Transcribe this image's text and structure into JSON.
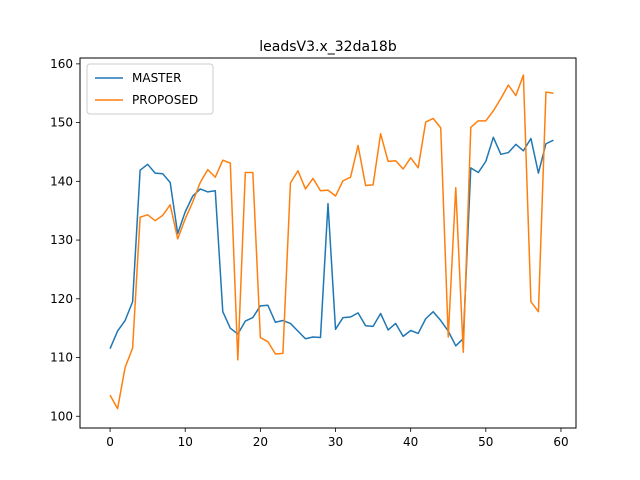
{
  "chart_data": {
    "type": "line",
    "title": "leadsV3.x_32da18b",
    "xlabel": "",
    "ylabel": "",
    "xlim": [
      -4,
      62
    ],
    "ylim": [
      98,
      161
    ],
    "xticks": [
      0,
      10,
      20,
      30,
      40,
      50,
      60
    ],
    "yticks": [
      100,
      110,
      120,
      130,
      140,
      150,
      160
    ],
    "grid": false,
    "legend": {
      "position": "top-left"
    },
    "x": [
      0,
      1,
      2,
      3,
      4,
      5,
      6,
      7,
      8,
      9,
      10,
      11,
      12,
      13,
      14,
      15,
      16,
      17,
      18,
      19,
      20,
      21,
      22,
      23,
      24,
      25,
      26,
      27,
      28,
      29,
      30,
      31,
      32,
      33,
      34,
      35,
      36,
      37,
      38,
      39,
      40,
      41,
      42,
      43,
      44,
      45,
      46,
      47,
      48,
      49,
      50,
      51,
      52,
      53,
      54,
      55,
      56,
      57,
      58,
      59
    ],
    "series": [
      {
        "name": "MASTER",
        "color": "#1f77b4",
        "values": [
          111.5,
          114.5,
          116.3,
          119.5,
          141.9,
          142.9,
          141.4,
          141.3,
          139.8,
          131.1,
          134.8,
          137.5,
          138.7,
          138.2,
          138.4,
          117.8,
          115.0,
          114.0,
          116.2,
          116.8,
          118.8,
          118.9,
          116.0,
          116.3,
          115.8,
          114.5,
          113.2,
          113.5,
          113.4,
          136.2,
          114.8,
          116.8,
          116.9,
          117.6,
          115.4,
          115.3,
          117.5,
          114.7,
          115.8,
          113.6,
          114.6,
          114.1,
          116.6,
          117.8,
          116.3,
          114.5,
          112.0,
          113.2,
          142.3,
          141.5,
          143.4,
          147.5,
          144.6,
          144.9,
          146.3,
          145.2,
          147.3,
          141.4,
          146.4,
          147.0
        ]
      },
      {
        "name": "PROPOSED",
        "color": "#ff7f0e",
        "values": [
          103.6,
          101.3,
          108.3,
          111.6,
          133.9,
          134.3,
          133.3,
          134.2,
          136.0,
          130.2,
          133.6,
          136.5,
          139.8,
          142.0,
          140.7,
          143.6,
          143.1,
          109.6,
          141.5,
          141.5,
          113.4,
          112.7,
          110.6,
          110.7,
          139.7,
          141.8,
          138.7,
          140.5,
          138.4,
          138.5,
          137.5,
          140.1,
          140.7,
          146.1,
          139.3,
          139.4,
          148.1,
          143.4,
          143.5,
          142.1,
          144.0,
          142.3,
          150.1,
          150.7,
          149.1,
          113.5,
          138.9,
          110.9,
          149.2,
          150.3,
          150.3,
          152.0,
          154.1,
          156.4,
          154.6,
          158.1,
          119.5,
          117.8,
          155.2,
          155.0
        ]
      }
    ]
  }
}
